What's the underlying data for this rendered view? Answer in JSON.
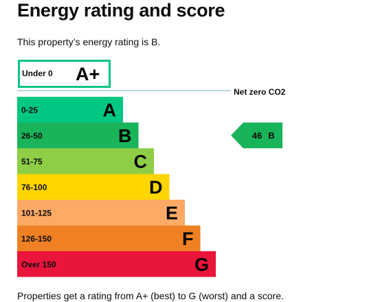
{
  "heading": "Energy rating and score",
  "intro": "This property’s energy rating is B.",
  "footer": "Properties get a rating from A+ (best) to G (worst) and a score.",
  "chart_data": {
    "type": "bar",
    "title": "",
    "top_band": {
      "range": "Under 0",
      "letter": "A+",
      "color": "#00c781"
    },
    "net_zero_label": "Net zero CO2",
    "bands": [
      {
        "range": "0-25",
        "letter": "A",
        "color": "#00c781"
      },
      {
        "range": "26-50",
        "letter": "B",
        "color": "#19b459"
      },
      {
        "range": "51-75",
        "letter": "C",
        "color": "#8dce46"
      },
      {
        "range": "76-100",
        "letter": "D",
        "color": "#ffd500"
      },
      {
        "range": "101-125",
        "letter": "E",
        "color": "#fcaa65"
      },
      {
        "range": "126-150",
        "letter": "F",
        "color": "#ef8023"
      },
      {
        "range": "Over 150",
        "letter": "G",
        "color": "#e9153b"
      }
    ],
    "current": {
      "score": "46",
      "letter": "B",
      "band_index": 1,
      "color": "#19b459"
    },
    "line_color": "#b7d3dd"
  }
}
